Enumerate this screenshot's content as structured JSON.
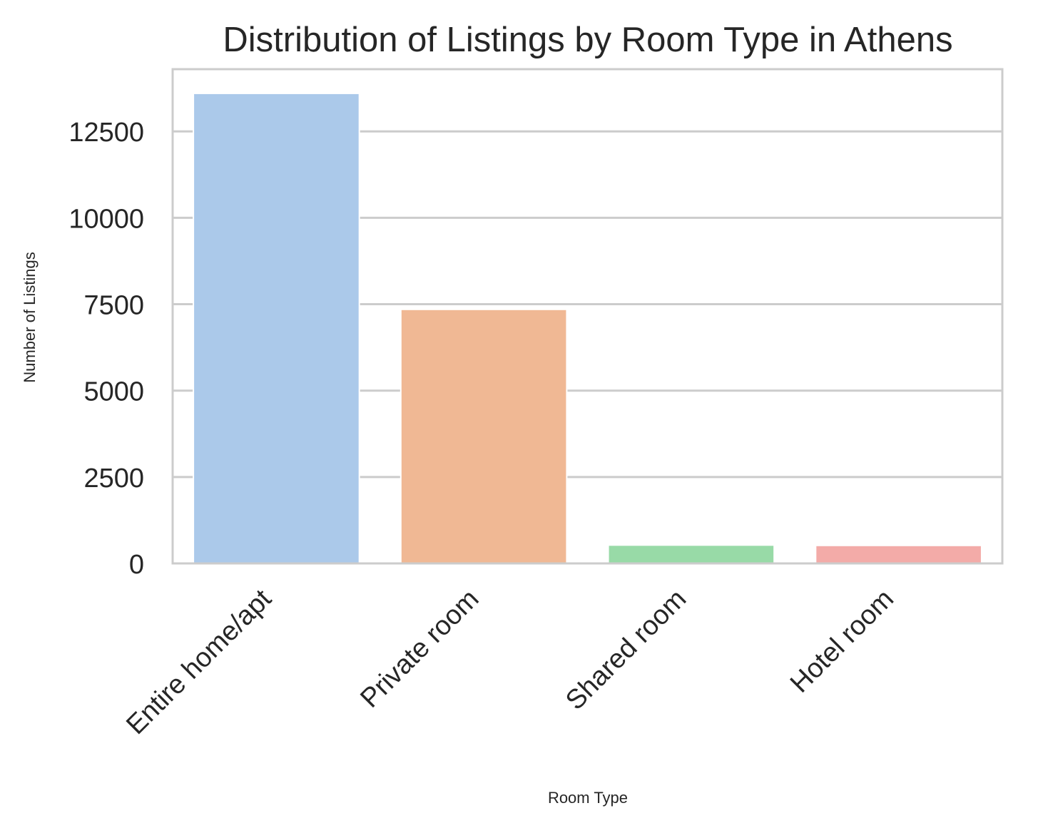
{
  "chart_data": {
    "type": "bar",
    "title": "Distribution of Listings by Room Type in Athens",
    "xlabel": "Room Type",
    "ylabel": "Number of Listings",
    "categories": [
      "Entire home/apt",
      "Private room",
      "Shared room",
      "Hotel room"
    ],
    "values": [
      13600,
      7350,
      530,
      520
    ],
    "ylim": [
      0,
      14300
    ],
    "yticks": [
      0,
      2500,
      5000,
      7500,
      10000,
      12500
    ],
    "ytick_labels": [
      "0",
      "2500",
      "5000",
      "7500",
      "10000",
      "12500"
    ],
    "grid": true,
    "legend": "none",
    "colors": [
      "#abc9ea",
      "#f0b894",
      "#98daa7",
      "#f3aba8"
    ],
    "grid_color": "#cccccc",
    "frame_color": "#cccccc",
    "text_color": "#262626"
  }
}
